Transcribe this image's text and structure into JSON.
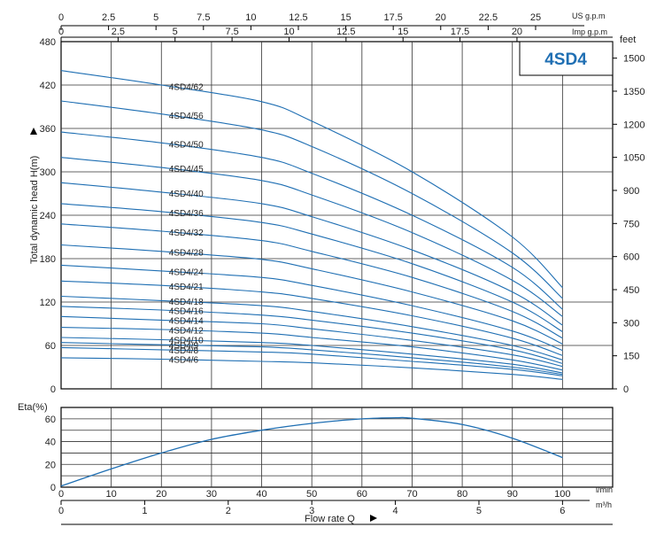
{
  "model_badge": "4SD4",
  "chart_data": [
    {
      "type": "line",
      "ylabel": "Total dynamic head H(m)",
      "ylim": [
        0,
        480
      ],
      "y_ticks": [
        "0",
        "60",
        "120",
        "180",
        "240",
        "300",
        "360",
        "420",
        "480"
      ],
      "right_axis": {
        "label": "feet",
        "ticks": [
          "0",
          "150",
          "300",
          "450",
          "600",
          "750",
          "900",
          "1050",
          "1200",
          "1350",
          "1500"
        ]
      },
      "top_axes": [
        {
          "unit_label": "US g.p.m",
          "ticks": [
            "0",
            "2.5",
            "5",
            "7.5",
            "10",
            "12.5",
            "15",
            "17.5",
            "20",
            "22.5",
            "25"
          ]
        },
        {
          "unit_label": "Imp g.p.m",
          "ticks": [
            "0",
            "2.5",
            "5",
            "7.5",
            "10",
            "12.5",
            "15",
            "17.5",
            "20"
          ]
        }
      ],
      "xlim": [
        0,
        110
      ],
      "grid": true,
      "series": [
        {
          "name": "4SD4/62",
          "points": [
            [
              0,
              440
            ],
            [
              20,
              420
            ],
            [
              40,
              397
            ],
            [
              50,
              370
            ],
            [
              70,
              300
            ],
            [
              90,
              210
            ],
            [
              100,
              140
            ]
          ]
        },
        {
          "name": "4SD4/56",
          "points": [
            [
              0,
              398
            ],
            [
              20,
              380
            ],
            [
              40,
              358
            ],
            [
              50,
              335
            ],
            [
              70,
              270
            ],
            [
              90,
              188
            ],
            [
              100,
              125
            ]
          ]
        },
        {
          "name": "4SD4/50",
          "points": [
            [
              0,
              355
            ],
            [
              20,
              340
            ],
            [
              40,
              320
            ],
            [
              50,
              298
            ],
            [
              70,
              240
            ],
            [
              90,
              168
            ],
            [
              100,
              110
            ]
          ]
        },
        {
          "name": "4SD4/45",
          "points": [
            [
              0,
              320
            ],
            [
              20,
              306
            ],
            [
              40,
              288
            ],
            [
              50,
              268
            ],
            [
              70,
              216
            ],
            [
              90,
              150
            ],
            [
              100,
              100
            ]
          ]
        },
        {
          "name": "4SD4/40",
          "points": [
            [
              0,
              285
            ],
            [
              20,
              272
            ],
            [
              40,
              256
            ],
            [
              50,
              238
            ],
            [
              70,
              192
            ],
            [
              90,
              134
            ],
            [
              100,
              88
            ]
          ]
        },
        {
          "name": "4SD4/36",
          "points": [
            [
              0,
              256
            ],
            [
              20,
              245
            ],
            [
              40,
              230
            ],
            [
              50,
              214
            ],
            [
              70,
              173
            ],
            [
              90,
              120
            ],
            [
              100,
              79
            ]
          ]
        },
        {
          "name": "4SD4/32",
          "points": [
            [
              0,
              228
            ],
            [
              20,
              218
            ],
            [
              40,
              205
            ],
            [
              50,
              190
            ],
            [
              70,
              154
            ],
            [
              90,
              107
            ],
            [
              100,
              70
            ]
          ]
        },
        {
          "name": "4SD4/28",
          "points": [
            [
              0,
              199
            ],
            [
              20,
              190
            ],
            [
              40,
              179
            ],
            [
              50,
              166
            ],
            [
              70,
              134
            ],
            [
              90,
              94
            ],
            [
              100,
              62
            ]
          ]
        },
        {
          "name": "4SD4/24",
          "points": [
            [
              0,
              171
            ],
            [
              20,
              163
            ],
            [
              40,
              154
            ],
            [
              50,
              143
            ],
            [
              70,
              115
            ],
            [
              90,
              80
            ],
            [
              100,
              53
            ]
          ]
        },
        {
          "name": "4SD4/21",
          "points": [
            [
              0,
              149
            ],
            [
              20,
              143
            ],
            [
              40,
              134
            ],
            [
              50,
              125
            ],
            [
              70,
              101
            ],
            [
              90,
              70
            ],
            [
              100,
              46
            ]
          ]
        },
        {
          "name": "4SD4/18",
          "points": [
            [
              0,
              128
            ],
            [
              20,
              122
            ],
            [
              40,
              115
            ],
            [
              50,
              107
            ],
            [
              70,
              86
            ],
            [
              90,
              60
            ],
            [
              100,
              40
            ]
          ]
        },
        {
          "name": "4SD4/16",
          "points": [
            [
              0,
              114
            ],
            [
              20,
              109
            ],
            [
              40,
              102
            ],
            [
              50,
              95
            ],
            [
              70,
              77
            ],
            [
              90,
              54
            ],
            [
              100,
              35
            ]
          ]
        },
        {
          "name": "4SD4/14",
          "points": [
            [
              0,
              100
            ],
            [
              20,
              95
            ],
            [
              40,
              90
            ],
            [
              50,
              83
            ],
            [
              70,
              67
            ],
            [
              90,
              47
            ],
            [
              100,
              31
            ]
          ]
        },
        {
          "name": "4SD4/12",
          "points": [
            [
              0,
              85
            ],
            [
              20,
              82
            ],
            [
              40,
              77
            ],
            [
              50,
              71
            ],
            [
              70,
              58
            ],
            [
              90,
              40
            ],
            [
              100,
              26
            ]
          ]
        },
        {
          "name": "4SD4/10",
          "points": [
            [
              0,
              71
            ],
            [
              20,
              68
            ],
            [
              40,
              64
            ],
            [
              50,
              60
            ],
            [
              70,
              48
            ],
            [
              90,
              34
            ],
            [
              100,
              22
            ]
          ]
        },
        {
          "name": "4SD4/9",
          "points": [
            [
              0,
              64
            ],
            [
              20,
              61
            ],
            [
              40,
              58
            ],
            [
              50,
              54
            ],
            [
              70,
              43
            ],
            [
              90,
              30
            ],
            [
              100,
              20
            ]
          ]
        },
        {
          "name": "4SD4/8",
          "points": [
            [
              0,
              57
            ],
            [
              20,
              54
            ],
            [
              40,
              51
            ],
            [
              50,
              48
            ],
            [
              70,
              38
            ],
            [
              90,
              27
            ],
            [
              100,
              18
            ]
          ]
        },
        {
          "name": "4SD4/6",
          "points": [
            [
              0,
              43
            ],
            [
              20,
              41
            ],
            [
              40,
              38
            ],
            [
              50,
              36
            ],
            [
              70,
              29
            ],
            [
              90,
              20
            ],
            [
              100,
              13
            ]
          ]
        }
      ]
    },
    {
      "type": "line",
      "ylabel": "Eta(%)",
      "ylim": [
        0,
        70
      ],
      "y_ticks": [
        "0",
        "20",
        "40",
        "60"
      ],
      "xlim": [
        0,
        110
      ],
      "grid": true,
      "series": [
        {
          "name": "",
          "points": [
            [
              0,
              1
            ],
            [
              10,
              16
            ],
            [
              20,
              30
            ],
            [
              30,
              42
            ],
            [
              40,
              50
            ],
            [
              50,
              56
            ],
            [
              60,
              60
            ],
            [
              67,
              61
            ],
            [
              70,
              60.5
            ],
            [
              80,
              55
            ],
            [
              90,
              43
            ],
            [
              100,
              26
            ]
          ]
        }
      ]
    }
  ],
  "bottom_axes": [
    {
      "unit_label": "l/min",
      "ticks": [
        "0",
        "10",
        "20",
        "30",
        "40",
        "50",
        "60",
        "70",
        "80",
        "90",
        "100"
      ]
    },
    {
      "unit_label": "m³/h",
      "ticks": [
        "0",
        "1",
        "2",
        "3",
        "4",
        "5",
        "6"
      ]
    }
  ],
  "xlabel": "Flow rate Q",
  "colors": {
    "curve": "#1f6fb3",
    "grid": "#333333",
    "frame": "#000000"
  }
}
